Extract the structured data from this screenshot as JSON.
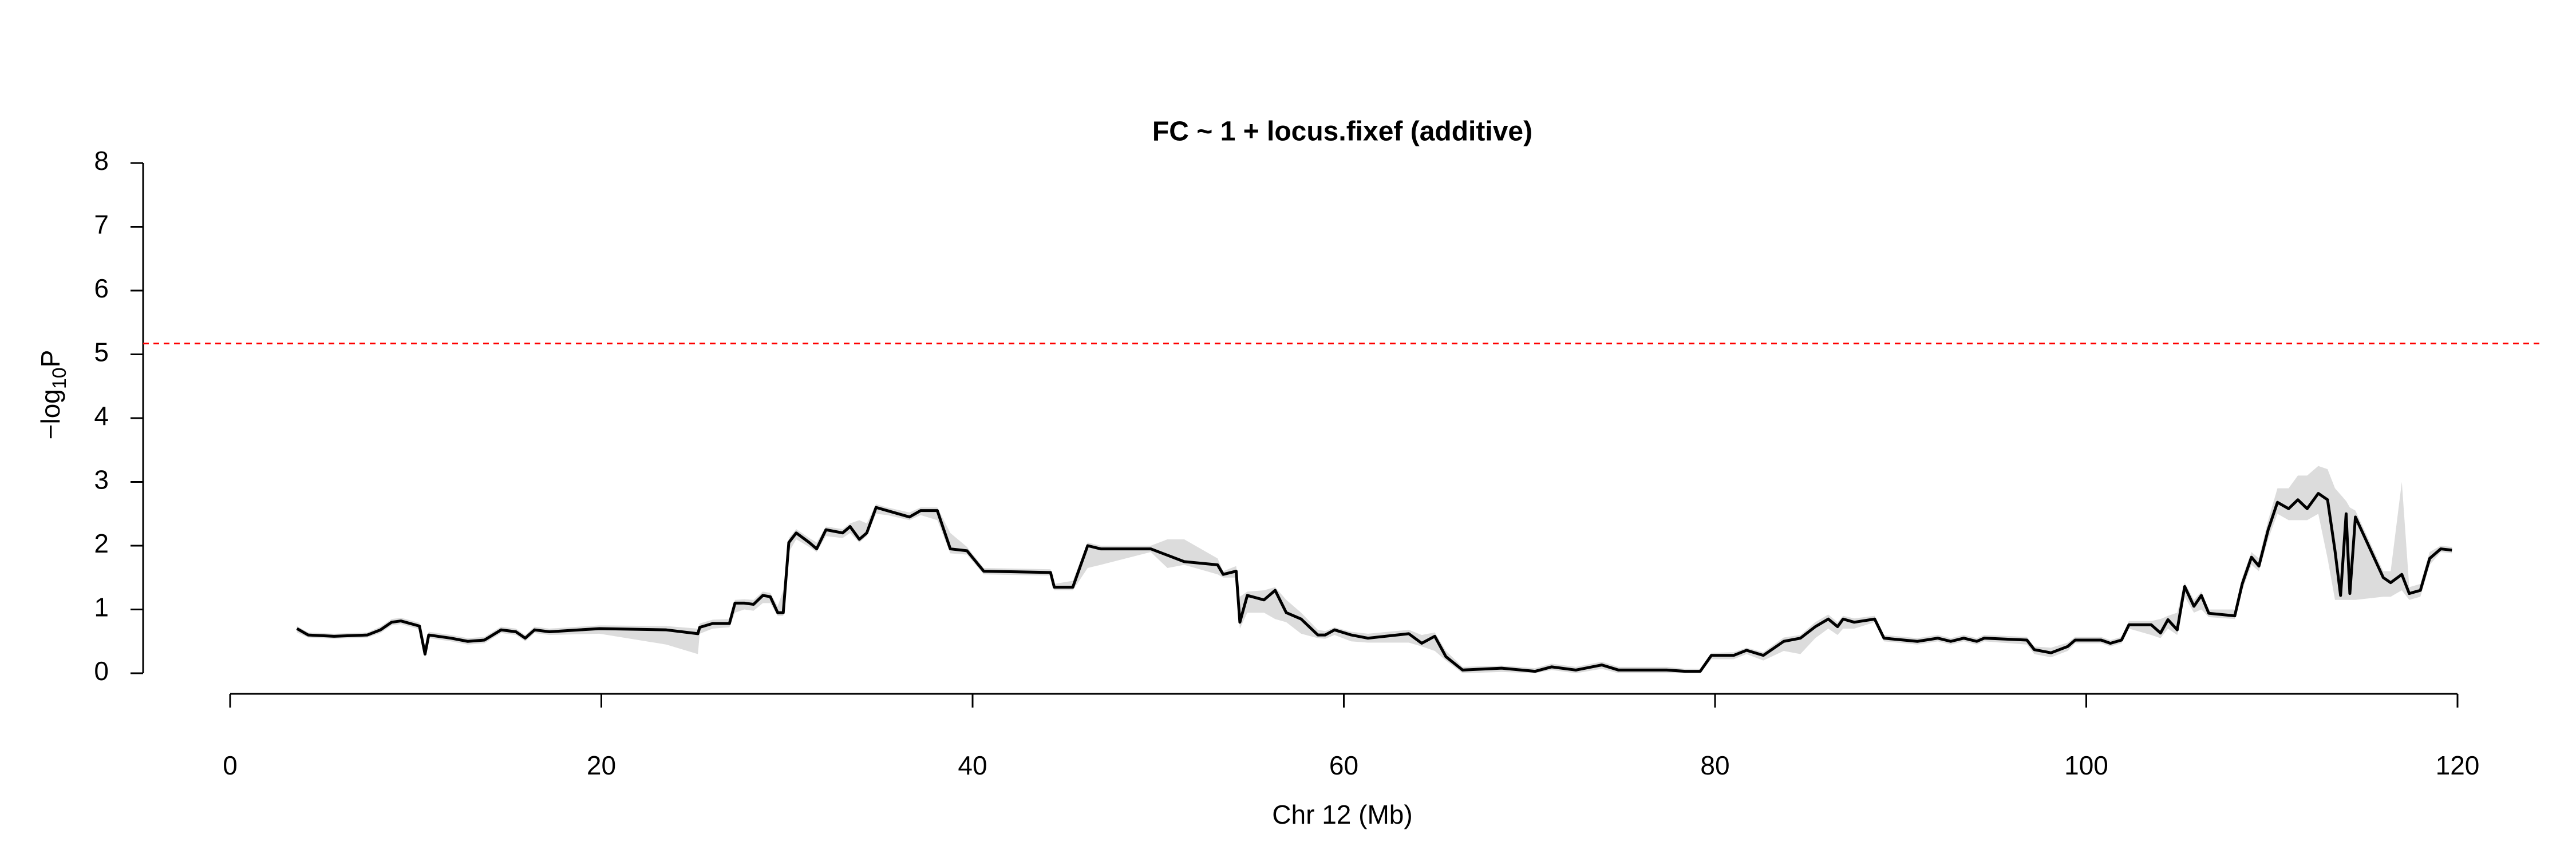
{
  "chart_data": {
    "type": "line",
    "title": "FC ~ 1 + locus.fixef (additive)",
    "xlabel": "Chr 12 (Mb)",
    "ylabel": {
      "prefix": "−log",
      "subscript": "10",
      "suffix": "P"
    },
    "xlim": [
      0,
      120
    ],
    "xticks": [
      0,
      20,
      40,
      60,
      80,
      100,
      120
    ],
    "ylim": [
      0,
      8
    ],
    "yticks": [
      0,
      1,
      2,
      3,
      4,
      5,
      6,
      7,
      8
    ],
    "color": "#000000",
    "band_color": "#dcdcdc",
    "threshold": {
      "value": 5.17,
      "color": "#ff0000"
    },
    "x": [
      3.6,
      4.2,
      5.6,
      7.4,
      8.1,
      8.7,
      9.2,
      10.2,
      10.5,
      10.7,
      11.9,
      12.8,
      13.7,
      14.6,
      15.4,
      15.9,
      16.4,
      17.2,
      19.9,
      23.5,
      25.2,
      25.3,
      26,
      26.9,
      27.2,
      27.7,
      28.2,
      28.7,
      29.1,
      29.5,
      29.8,
      30.1,
      30.5,
      31.2,
      31.6,
      32.1,
      33,
      33.4,
      33.9,
      34.3,
      34.8,
      35.4,
      36.6,
      37.2,
      38.1,
      38.8,
      39.7,
      40.6,
      44.2,
      44.4,
      45.4,
      46.2,
      46.9,
      49.6,
      50.5,
      51.4,
      53.2,
      53.5,
      54.2,
      54.4,
      54.8,
      55.7,
      56.3,
      56.9,
      57.7,
      58.6,
      59,
      59.5,
      60.4,
      61.3,
      63.5,
      64.2,
      64.9,
      65.5,
      66.4,
      68.5,
      70.3,
      71.2,
      72.5,
      73.9,
      74.8,
      77.4,
      78.4,
      79.2,
      79.8,
      81,
      81.7,
      82.6,
      83.7,
      84.6,
      85.4,
      86.1,
      86.6,
      86.9,
      87.5,
      88.6,
      89.1,
      90.9,
      92,
      92.7,
      93.4,
      94.1,
      94.5,
      96.8,
      97.2,
      98.1,
      99,
      99.4,
      100.8,
      101.3,
      101.9,
      102.3,
      103.5,
      104,
      104.4,
      104.9,
      105.3,
      105.8,
      106.2,
      106.6,
      108,
      108.4,
      108.9,
      109.3,
      109.8,
      110.3,
      110.9,
      111.4,
      111.9,
      112.5,
      113,
      113.4,
      113.7,
      114,
      114.2,
      114.5,
      116,
      116.4,
      117,
      117.4,
      118,
      118.5,
      119.1,
      119.7
    ],
    "values": [
      0.7,
      0.6,
      0.58,
      0.6,
      0.68,
      0.8,
      0.82,
      0.74,
      0.3,
      0.6,
      0.55,
      0.5,
      0.52,
      0.68,
      0.65,
      0.55,
      0.68,
      0.65,
      0.7,
      0.68,
      0.62,
      0.72,
      0.78,
      0.78,
      1.1,
      1.1,
      1.08,
      1.22,
      1.2,
      0.95,
      0.95,
      2.05,
      2.2,
      2.05,
      1.95,
      2.25,
      2.2,
      2.3,
      2.1,
      2.2,
      2.6,
      2.55,
      2.45,
      2.55,
      2.55,
      1.95,
      1.92,
      1.6,
      1.58,
      1.35,
      1.35,
      2.0,
      1.95,
      1.95,
      1.85,
      1.75,
      1.7,
      1.55,
      1.6,
      0.8,
      1.22,
      1.15,
      1.3,
      0.95,
      0.85,
      0.6,
      0.6,
      0.68,
      0.6,
      0.55,
      0.62,
      0.47,
      0.58,
      0.26,
      0.05,
      0.08,
      0.03,
      0.1,
      0.05,
      0.13,
      0.05,
      0.05,
      0.03,
      0.03,
      0.28,
      0.28,
      0.36,
      0.28,
      0.5,
      0.55,
      0.73,
      0.85,
      0.73,
      0.85,
      0.8,
      0.85,
      0.55,
      0.5,
      0.55,
      0.5,
      0.55,
      0.5,
      0.55,
      0.52,
      0.37,
      0.32,
      0.42,
      0.52,
      0.52,
      0.47,
      0.52,
      0.76,
      0.76,
      0.63,
      0.84,
      0.68,
      1.36,
      1.05,
      1.22,
      0.94,
      0.9,
      1.4,
      1.82,
      1.68,
      2.25,
      2.68,
      2.58,
      2.72,
      2.58,
      2.82,
      2.72,
      1.92,
      1.22,
      2.5,
      1.25,
      2.45,
      1.5,
      1.42,
      1.55,
      1.25,
      1.3,
      1.8,
      1.95,
      1.93
    ],
    "band": {
      "upper": [
        0.74,
        0.64,
        0.62,
        0.64,
        0.73,
        0.85,
        0.87,
        0.79,
        0.35,
        0.65,
        0.6,
        0.55,
        0.57,
        0.73,
        0.7,
        0.6,
        0.73,
        0.7,
        0.75,
        0.74,
        0.7,
        0.78,
        0.84,
        0.85,
        1.15,
        1.16,
        1.15,
        1.28,
        1.26,
        1.05,
        1.3,
        2.12,
        2.26,
        2.12,
        2.05,
        2.3,
        2.26,
        2.35,
        2.4,
        2.35,
        2.65,
        2.6,
        2.52,
        2.6,
        2.6,
        2.2,
        1.98,
        1.65,
        1.63,
        1.4,
        1.45,
        2.05,
        2.0,
        2.0,
        2.1,
        2.1,
        1.8,
        1.6,
        1.68,
        1.2,
        1.28,
        1.3,
        1.35,
        1.15,
        0.95,
        0.68,
        0.66,
        0.72,
        0.65,
        0.62,
        0.68,
        0.6,
        0.64,
        0.35,
        0.1,
        0.12,
        0.08,
        0.15,
        0.1,
        0.18,
        0.1,
        0.1,
        0.07,
        0.07,
        0.32,
        0.33,
        0.4,
        0.33,
        0.56,
        0.6,
        0.8,
        0.92,
        0.8,
        0.9,
        0.86,
        0.9,
        0.6,
        0.55,
        0.6,
        0.55,
        0.6,
        0.55,
        0.6,
        0.57,
        0.42,
        0.4,
        0.48,
        0.57,
        0.57,
        0.52,
        0.57,
        0.82,
        0.82,
        0.85,
        0.9,
        0.95,
        1.42,
        1.15,
        1.28,
        1.0,
        1.0,
        1.5,
        1.9,
        1.8,
        2.4,
        2.9,
        2.9,
        3.1,
        3.1,
        3.25,
        3.2,
        2.9,
        2.8,
        2.7,
        2.6,
        2.55,
        1.6,
        1.6,
        3.0,
        1.35,
        1.4,
        1.9,
        2.0,
        1.98
      ],
      "lower": [
        0.64,
        0.56,
        0.54,
        0.56,
        0.63,
        0.75,
        0.77,
        0.69,
        0.25,
        0.55,
        0.5,
        0.45,
        0.47,
        0.63,
        0.6,
        0.5,
        0.63,
        0.6,
        0.62,
        0.45,
        0.3,
        0.62,
        0.7,
        0.72,
        0.95,
        1.0,
        0.98,
        1.1,
        1.1,
        0.9,
        0.9,
        1.9,
        2.1,
        1.98,
        1.9,
        2.15,
        2.12,
        2.2,
        2.05,
        2.15,
        2.5,
        2.48,
        2.4,
        2.48,
        2.4,
        1.88,
        1.86,
        1.55,
        1.53,
        1.3,
        1.3,
        1.65,
        1.7,
        1.9,
        1.65,
        1.7,
        1.55,
        1.5,
        1.5,
        0.7,
        0.95,
        0.95,
        0.85,
        0.8,
        0.62,
        0.55,
        0.54,
        0.6,
        0.5,
        0.48,
        0.48,
        0.42,
        0.35,
        0.2,
        0,
        0.02,
        0,
        0.05,
        0,
        0.07,
        0,
        0,
        0,
        0,
        0.22,
        0.22,
        0.3,
        0.2,
        0.35,
        0.3,
        0.55,
        0.7,
        0.6,
        0.7,
        0.7,
        0.8,
        0.5,
        0.45,
        0.5,
        0.45,
        0.5,
        0.45,
        0.5,
        0.45,
        0.3,
        0.25,
        0.35,
        0.47,
        0.47,
        0.42,
        0.47,
        0.7,
        0.6,
        0.55,
        0.7,
        0.6,
        1.2,
        0.95,
        1.0,
        0.88,
        0.85,
        1.3,
        1.7,
        1.6,
        2.1,
        2.5,
        2.4,
        2.4,
        2.4,
        2.5,
        1.8,
        1.15,
        1.15,
        1.15,
        1.15,
        1.15,
        1.2,
        1.2,
        1.3,
        1.15,
        1.2,
        1.7,
        1.9,
        1.88
      ]
    }
  }
}
